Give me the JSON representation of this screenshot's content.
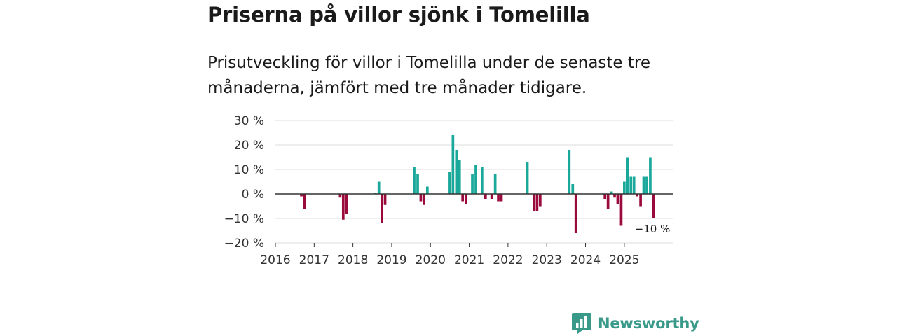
{
  "chart_data": {
    "type": "bar",
    "title": "Priserna på villor sjönk i Tomelilla",
    "subtitle": "Prisutveckling för villor i Tomelilla under de senaste tre månaderna, jämfört med tre månader tidigare.",
    "ylim": [
      -20,
      30
    ],
    "yticks": [
      -20,
      -10,
      0,
      10,
      20,
      30
    ],
    "ytick_labels": [
      "−20 %",
      "−10 %",
      "0 %",
      "10 %",
      "20 %",
      "30 %"
    ],
    "xlim": [
      2016,
      2026.25
    ],
    "xticks": [
      2016,
      2017,
      2018,
      2019,
      2020,
      2021,
      2022,
      2023,
      2024,
      2025
    ],
    "xtick_labels": [
      "2016",
      "2017",
      "2018",
      "2019",
      "2020",
      "2021",
      "2022",
      "2023",
      "2024",
      "2025"
    ],
    "gridlines": true,
    "positive_color": "#1aa89a",
    "negative_color": "#9b0a3c",
    "annotation": "−10 %",
    "annotation_index": 52,
    "series": [
      {
        "name": "Prisutveckling",
        "points": [
          {
            "x": 2016.67,
            "y": -1
          },
          {
            "x": 2016.75,
            "y": -6
          },
          {
            "x": 2017.67,
            "y": -1.5
          },
          {
            "x": 2017.75,
            "y": -10.5
          },
          {
            "x": 2017.83,
            "y": -8
          },
          {
            "x": 2018.58,
            "y": 0.5
          },
          {
            "x": 2018.67,
            "y": 5
          },
          {
            "x": 2018.75,
            "y": -12
          },
          {
            "x": 2018.83,
            "y": -4.5
          },
          {
            "x": 2019.58,
            "y": 11
          },
          {
            "x": 2019.67,
            "y": 8
          },
          {
            "x": 2019.75,
            "y": -3
          },
          {
            "x": 2019.83,
            "y": -4.5
          },
          {
            "x": 2019.92,
            "y": 3
          },
          {
            "x": 2020.5,
            "y": 9
          },
          {
            "x": 2020.58,
            "y": 24
          },
          {
            "x": 2020.67,
            "y": 18
          },
          {
            "x": 2020.75,
            "y": 14
          },
          {
            "x": 2020.83,
            "y": -3
          },
          {
            "x": 2020.92,
            "y": -4
          },
          {
            "x": 2021.08,
            "y": 8
          },
          {
            "x": 2021.17,
            "y": 12
          },
          {
            "x": 2021.33,
            "y": 11
          },
          {
            "x": 2021.42,
            "y": -2
          },
          {
            "x": 2021.58,
            "y": -2
          },
          {
            "x": 2021.67,
            "y": 8
          },
          {
            "x": 2021.75,
            "y": -3
          },
          {
            "x": 2021.83,
            "y": -3
          },
          {
            "x": 2022.5,
            "y": 13
          },
          {
            "x": 2022.67,
            "y": -7
          },
          {
            "x": 2022.75,
            "y": -7
          },
          {
            "x": 2022.83,
            "y": -5
          },
          {
            "x": 2023.58,
            "y": 18
          },
          {
            "x": 2023.67,
            "y": 4
          },
          {
            "x": 2023.75,
            "y": -16
          },
          {
            "x": 2024.5,
            "y": -2
          },
          {
            "x": 2024.58,
            "y": -6
          },
          {
            "x": 2024.67,
            "y": 1
          },
          {
            "x": 2024.75,
            "y": -1.5
          },
          {
            "x": 2024.83,
            "y": -4
          },
          {
            "x": 2024.92,
            "y": -13
          },
          {
            "x": 2025.0,
            "y": 5
          },
          {
            "x": 2025.08,
            "y": 15
          },
          {
            "x": 2025.17,
            "y": 7
          },
          {
            "x": 2025.25,
            "y": 7
          },
          {
            "x": 2025.33,
            "y": -1
          },
          {
            "x": 2025.42,
            "y": -5
          },
          {
            "x": 2025.5,
            "y": 7
          },
          {
            "x": 2025.58,
            "y": 7
          },
          {
            "x": 2025.67,
            "y": 15
          },
          {
            "x": 2025.75,
            "y": -10
          }
        ]
      }
    ]
  },
  "brand": {
    "name": "Newsworthy",
    "color": "#3a9a8a",
    "icon": "newsworthy-logo-icon"
  }
}
